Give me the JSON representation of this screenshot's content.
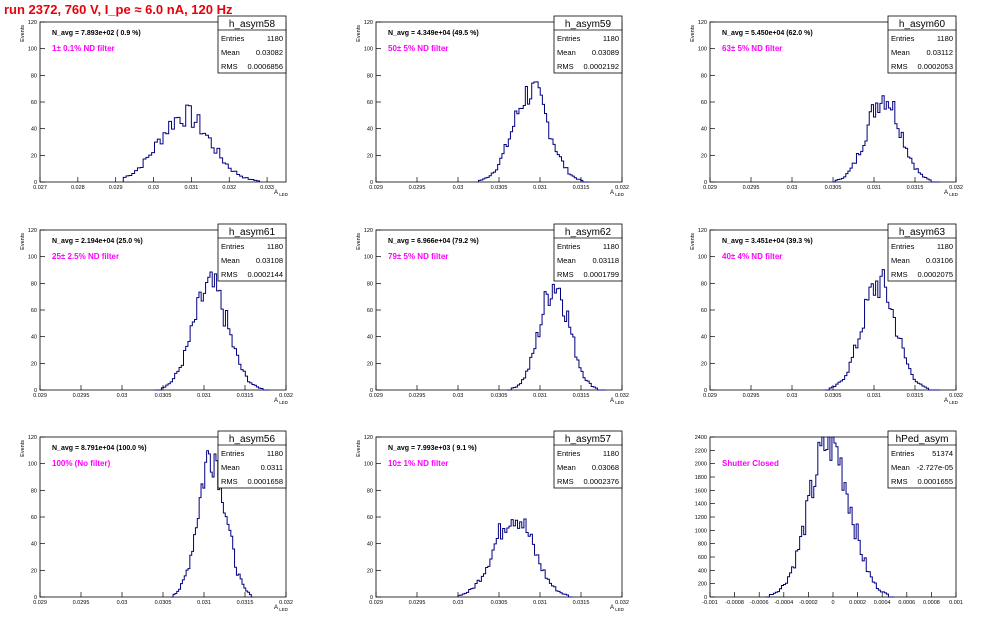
{
  "page": {
    "run_title": "run 2372,   760 V, I_pe ≈ 6.0 nA, 120 Hz"
  },
  "colors": {
    "hist_line": "#000080",
    "filter_text": "#ff00ff",
    "run_title": "#e8000b",
    "axis": "#000000"
  },
  "chart_data": [
    {
      "type": "histogram",
      "name": "h_asym58",
      "navg": "N_avg = 7.893e+02 ( 0.9 %)",
      "filter_label": "1± 0.1% ND filter",
      "stats": [
        [
          "Entries",
          "1180"
        ],
        [
          "Mean",
          "0.03082"
        ],
        [
          "RMS",
          "0.0006856"
        ]
      ],
      "ylabel": "Events",
      "xlabel": "A_LED",
      "xlim": [
        0.027,
        0.0335
      ],
      "ylim": [
        0,
        120
      ],
      "xticks": [
        0.027,
        0.028,
        0.029,
        0.03,
        0.031,
        0.032,
        0.033
      ],
      "xticklabels": [
        "0.027",
        "0.028",
        "0.029",
        "0.03",
        "0.031",
        "0.032",
        "0.033"
      ],
      "yticks": [
        0,
        20,
        40,
        60,
        80,
        100,
        120
      ],
      "hist": {
        "mean": 0.03082,
        "rms": 0.0006856,
        "peak": 50,
        "range": [
          0.0292,
          0.0328
        ],
        "nbins": 48
      }
    },
    {
      "type": "histogram",
      "name": "h_asym59",
      "navg": "N_avg = 4.349e+04 (49.5 %)",
      "filter_label": "50± 5% ND filter",
      "stats": [
        [
          "Entries",
          "1180"
        ],
        [
          "Mean",
          "0.03089"
        ],
        [
          "RMS",
          "0.0002192"
        ]
      ],
      "ylabel": "Events",
      "xlabel": "A_LED",
      "xlim": [
        0.029,
        0.032
      ],
      "ylim": [
        0,
        120
      ],
      "xticks": [
        0.029,
        0.0295,
        0.03,
        0.0305,
        0.031,
        0.0315,
        0.032
      ],
      "xticklabels": [
        "0.029",
        "0.0295",
        "0.03",
        "0.0305",
        "0.031",
        "0.0315",
        "0.032"
      ],
      "yticks": [
        0,
        20,
        40,
        60,
        80,
        100,
        120
      ],
      "hist": {
        "mean": 0.03089,
        "rms": 0.0002192,
        "peak": 68,
        "range": [
          0.03025,
          0.0316
        ],
        "nbins": 52
      }
    },
    {
      "type": "histogram",
      "name": "h_asym60",
      "navg": "N_avg = 5.450e+04 (62.0 %)",
      "filter_label": "63± 5% ND filter",
      "stats": [
        [
          "Entries",
          "1180"
        ],
        [
          "Mean",
          "0.03112"
        ],
        [
          "RMS",
          "0.0002053"
        ]
      ],
      "ylabel": "Events",
      "xlabel": "A_LED",
      "xlim": [
        0.029,
        0.032
      ],
      "ylim": [
        0,
        120
      ],
      "xticks": [
        0.029,
        0.0295,
        0.03,
        0.0305,
        0.031,
        0.0315,
        0.032
      ],
      "xticklabels": [
        "0.029",
        "0.0295",
        "0.03",
        "0.0305",
        "0.031",
        "0.0315",
        "0.032"
      ],
      "yticks": [
        0,
        20,
        40,
        60,
        80,
        100,
        120
      ],
      "hist": {
        "mean": 0.03112,
        "rms": 0.0002053,
        "peak": 65,
        "range": [
          0.0305,
          0.0318
        ],
        "nbins": 50
      }
    },
    {
      "type": "histogram",
      "name": "h_asym61",
      "navg": "N_avg = 2.194e+04 (25.0 %)",
      "filter_label": "25± 2.5% ND filter",
      "stats": [
        [
          "Entries",
          "1180"
        ],
        [
          "Mean",
          "0.03108"
        ],
        [
          "RMS",
          "0.0002144"
        ]
      ],
      "ylabel": "Events",
      "xlabel": "A_LED",
      "xlim": [
        0.029,
        0.032
      ],
      "ylim": [
        0,
        120
      ],
      "xticks": [
        0.029,
        0.0295,
        0.03,
        0.0305,
        0.031,
        0.0315,
        0.032
      ],
      "xticklabels": [
        "0.029",
        "0.0295",
        "0.03",
        "0.0305",
        "0.031",
        "0.0315",
        "0.032"
      ],
      "yticks": [
        0,
        20,
        40,
        60,
        80,
        100,
        120
      ],
      "hist": {
        "mean": 0.03108,
        "rms": 0.0002144,
        "peak": 77,
        "range": [
          0.0304,
          0.0318
        ],
        "nbins": 52
      }
    },
    {
      "type": "histogram",
      "name": "h_asym62",
      "navg": "N_avg = 6.966e+04 (79.2 %)",
      "filter_label": "79± 5% ND filter",
      "stats": [
        [
          "Entries",
          "1180"
        ],
        [
          "Mean",
          "0.03118"
        ],
        [
          "RMS",
          "0.0001799"
        ]
      ],
      "ylabel": "Events",
      "xlabel": "A_LED",
      "xlim": [
        0.029,
        0.032
      ],
      "ylim": [
        0,
        120
      ],
      "xticks": [
        0.029,
        0.0295,
        0.03,
        0.0305,
        0.031,
        0.0315,
        0.032
      ],
      "xticklabels": [
        "0.029",
        "0.0295",
        "0.03",
        "0.0305",
        "0.031",
        "0.0315",
        "0.032"
      ],
      "yticks": [
        0,
        20,
        40,
        60,
        80,
        100,
        120
      ],
      "hist": {
        "mean": 0.03118,
        "rms": 0.0001799,
        "peak": 80,
        "range": [
          0.0306,
          0.0318
        ],
        "nbins": 48
      }
    },
    {
      "type": "histogram",
      "name": "h_asym63",
      "navg": "N_avg = 3.451e+04 (39.3 %)",
      "filter_label": "40± 4% ND filter",
      "stats": [
        [
          "Entries",
          "1180"
        ],
        [
          "Mean",
          "0.03106"
        ],
        [
          "RMS",
          "0.0002075"
        ]
      ],
      "ylabel": "Events",
      "xlabel": "A_LED",
      "xlim": [
        0.029,
        0.032
      ],
      "ylim": [
        0,
        120
      ],
      "xticks": [
        0.029,
        0.0295,
        0.03,
        0.0305,
        0.031,
        0.0315,
        0.032
      ],
      "xticklabels": [
        "0.029",
        "0.0295",
        "0.03",
        "0.0305",
        "0.031",
        "0.0315",
        "0.032"
      ],
      "yticks": [
        0,
        20,
        40,
        60,
        80,
        100,
        120
      ],
      "hist": {
        "mean": 0.03106,
        "rms": 0.0002075,
        "peak": 80,
        "range": [
          0.0304,
          0.0318
        ],
        "nbins": 52
      }
    },
    {
      "type": "histogram",
      "name": "h_asym56",
      "navg": "N_avg = 8.791e+04 (100.0 %)",
      "filter_label": "100% (No filter)",
      "stats": [
        [
          "Entries",
          "1180"
        ],
        [
          "Mean",
          "0.0311"
        ],
        [
          "RMS",
          "0.0001658"
        ]
      ],
      "ylabel": "Events",
      "xlabel": "A_LED",
      "xlim": [
        0.029,
        0.032
      ],
      "ylim": [
        0,
        120
      ],
      "xticks": [
        0.029,
        0.0295,
        0.03,
        0.0305,
        0.031,
        0.0315,
        0.032
      ],
      "xticklabels": [
        "0.029",
        "0.0295",
        "0.03",
        "0.0305",
        "0.031",
        "0.0315",
        "0.032"
      ],
      "yticks": [
        0,
        20,
        40,
        60,
        80,
        100,
        120
      ],
      "hist": {
        "mean": 0.0311,
        "rms": 0.0001658,
        "peak": 110,
        "range": [
          0.0306,
          0.0316
        ],
        "nbins": 44
      }
    },
    {
      "type": "histogram",
      "name": "h_asym57",
      "navg": "N_avg = 7.993e+03 ( 9.1 %)",
      "filter_label": "10± 1% ND filter",
      "stats": [
        [
          "Entries",
          "1180"
        ],
        [
          "Mean",
          "0.03068"
        ],
        [
          "RMS",
          "0.0002376"
        ]
      ],
      "ylabel": "Events",
      "xlabel": "A_LED",
      "xlim": [
        0.029,
        0.032
      ],
      "ylim": [
        0,
        120
      ],
      "xticks": [
        0.029,
        0.0295,
        0.03,
        0.0305,
        0.031,
        0.0315,
        0.032
      ],
      "xticklabels": [
        "0.029",
        "0.0295",
        "0.03",
        "0.0305",
        "0.031",
        "0.0315",
        "0.032"
      ],
      "yticks": [
        0,
        20,
        40,
        60,
        80,
        100,
        120
      ],
      "hist": {
        "mean": 0.03068,
        "rms": 0.0002376,
        "peak": 62,
        "range": [
          0.03,
          0.0314
        ],
        "nbins": 54
      }
    },
    {
      "type": "histogram",
      "name": "hPed_asym",
      "navg": "",
      "filter_label": "Shutter Closed",
      "stats": [
        [
          "Entries",
          "51374"
        ],
        [
          "Mean",
          "-2.727e-05"
        ],
        [
          "RMS",
          "0.0001655"
        ]
      ],
      "ylabel": "",
      "xlabel": "",
      "xlim": [
        -0.001,
        0.001
      ],
      "ylim": [
        0,
        2400
      ],
      "xticks": [
        -0.001,
        -0.0008,
        -0.0006,
        -0.0004,
        -0.0002,
        0,
        0.0002,
        0.0004,
        0.0006,
        0.0008,
        0.001
      ],
      "xticklabels": [
        "-0.001",
        "-0.0008",
        "-0.0006",
        "-0.0004",
        "-0.0002",
        "0",
        "0.0002",
        "0.0004",
        "0.0006",
        "0.0008",
        "0.001"
      ],
      "yticks": [
        0,
        200,
        400,
        600,
        800,
        1000,
        1200,
        1400,
        1600,
        1800,
        2000,
        2200,
        2400
      ],
      "hist": {
        "mean": -2.727e-05,
        "rms": 0.0001655,
        "peak": 2330,
        "range": [
          -0.00055,
          0.0005
        ],
        "nbins": 64
      }
    }
  ]
}
